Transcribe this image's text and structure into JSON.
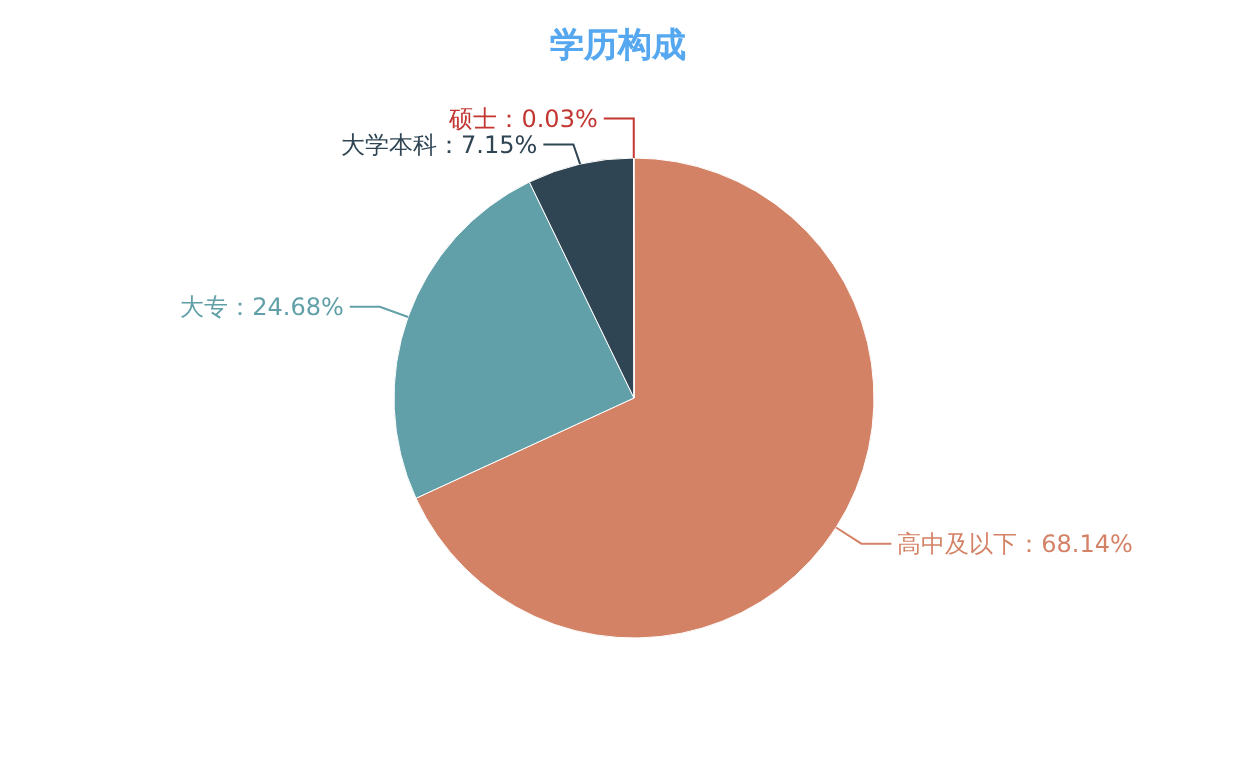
{
  "chart_data": {
    "type": "pie",
    "title": "学历构成",
    "categories": [
      "高中及以下",
      "大专",
      "大学本科",
      "硕士"
    ],
    "values": [
      68.14,
      24.68,
      7.15,
      0.03
    ],
    "value_labels": [
      "68.14%",
      "24.68%",
      "7.15%",
      "0.03%"
    ],
    "colors": [
      "#d48265",
      "#61a0a8",
      "#2f4554",
      "#c23531"
    ]
  }
}
